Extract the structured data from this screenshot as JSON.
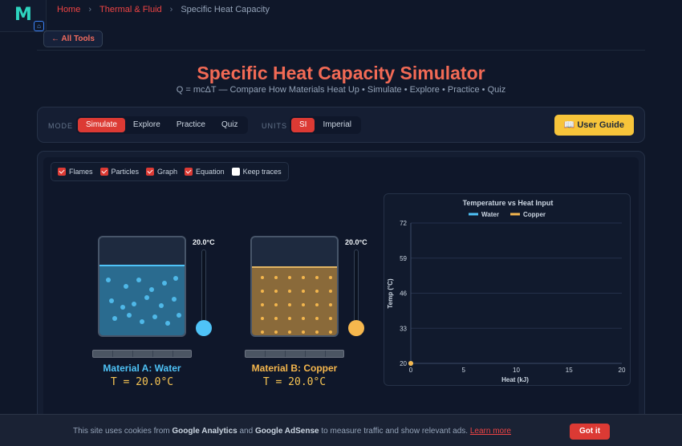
{
  "breadcrumb": {
    "home": "Home",
    "sep": "›",
    "section": "Thermal & Fluid",
    "current": "Specific Heat Capacity"
  },
  "nav": {
    "all_tools": "← All Tools"
  },
  "header": {
    "title": "Specific Heat Capacity Simulator",
    "subtitle": "Q = mcΔT — Compare How Materials Heat Up • Simulate • Explore • Practice • Quiz"
  },
  "controls": {
    "mode_label": "MODE",
    "modes": [
      "Simulate",
      "Explore",
      "Practice",
      "Quiz"
    ],
    "active_mode": "Simulate",
    "units_label": "UNITS",
    "units": [
      "SI",
      "Imperial"
    ],
    "active_unit": "SI",
    "user_guide": "📖 User Guide"
  },
  "toggles": [
    {
      "label": "Flames",
      "checked": true
    },
    {
      "label": "Particles",
      "checked": true
    },
    {
      "label": "Graph",
      "checked": true
    },
    {
      "label": "Equation",
      "checked": true
    },
    {
      "label": "Keep traces",
      "checked": false
    }
  ],
  "materials": {
    "a": {
      "label": "Material A: Water",
      "temp": "T = 20.0°C",
      "thermo": "20.0°C",
      "color": "#4fc3f7"
    },
    "b": {
      "label": "Material B: Copper",
      "temp": "T = 20.0°C",
      "thermo": "20.0°C",
      "color": "#f6b74d"
    }
  },
  "chart_data": {
    "type": "line",
    "title": "Temperature vs Heat Input",
    "xlabel": "Heat (kJ)",
    "ylabel": "Temp (°C)",
    "x_ticks": [
      0,
      5,
      10,
      15,
      20
    ],
    "y_ticks": [
      20,
      33,
      46,
      59,
      72
    ],
    "xlim": [
      0,
      20
    ],
    "ylim": [
      20,
      72
    ],
    "grid": true,
    "legend": "top",
    "series": [
      {
        "name": "Water",
        "color": "#4fc3f7",
        "points": [
          [
            0,
            20
          ]
        ]
      },
      {
        "name": "Copper",
        "color": "#f6b74d",
        "points": [
          [
            0,
            20
          ]
        ]
      }
    ]
  },
  "cookie": {
    "text1": "This site uses cookies from ",
    "ga": "Google Analytics",
    "and": " and ",
    "ads": "Google AdSense",
    "text2": " to measure traffic and show relevant ads. ",
    "learn": "Learn more",
    "accept": "Got it"
  }
}
